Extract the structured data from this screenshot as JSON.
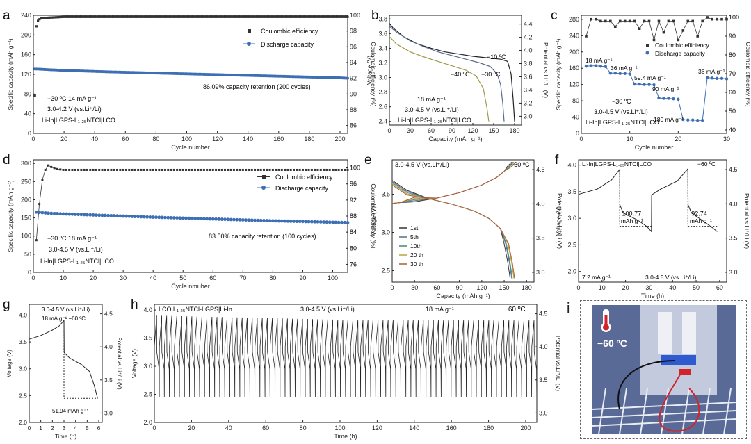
{
  "panels": [
    {
      "id": "a",
      "letter": "a",
      "xlabel": "Cycle number",
      "ylabel": "Specific capacity (mAh g⁻¹)",
      "y2label": "Coulombic efficiency (%)",
      "xlim": [
        0,
        205
      ],
      "xticks": [
        0,
        20,
        40,
        60,
        80,
        100,
        120,
        140,
        160,
        180,
        200
      ],
      "ylim": [
        0,
        240
      ],
      "yticks": [
        0,
        40,
        80,
        120,
        160,
        200,
        240
      ],
      "y2lim": [
        85,
        100
      ],
      "y2ticks": [
        86,
        88,
        90,
        92,
        94,
        96,
        98,
        100
      ],
      "legend": [
        "Coulombic efficiency",
        "Discharge capacity"
      ],
      "annotations": [
        "−30 ºC   14 mA g⁻¹",
        "3.0-4.2 V (vs.Li⁺/Li)",
        "Li-In|LGPS-L₁.₂₅NTCl|LCO"
      ],
      "retention": "86.09% capacity retention (200 cycles)"
    },
    {
      "id": "b",
      "letter": "b",
      "xlabel": "Capacity (mAh g⁻¹)",
      "ylabel": "Voltage (V)",
      "y2label": "Potential vs.Li⁺/Li (V)",
      "xlim": [
        0,
        190
      ],
      "xticks": [
        0,
        30,
        60,
        90,
        120,
        150,
        180
      ],
      "ylim": [
        2.35,
        3.85
      ],
      "yticks": [
        2.4,
        2.6,
        2.8,
        3.0,
        3.2,
        3.4,
        3.6,
        3.8
      ],
      "y2ticks": [
        "3.0",
        "3.2",
        "3.4",
        "3.6",
        "3.8",
        "4.0",
        "4.2",
        "4.4"
      ],
      "curve_labels": [
        "−10 ºC",
        "−30 ºC",
        "−40 ºC"
      ],
      "annotations": [
        "18 mA g⁻¹",
        "3.0-4.5 V (vs.Li⁺/Li)",
        "Li-In|LGPS-L₁.₂₅NTCl|LCO"
      ]
    },
    {
      "id": "c",
      "letter": "c",
      "xlabel": "Cycle number",
      "ylabel": "Specific capacity (mAh g⁻¹)",
      "y2label": "Coulombic efficiency (%)",
      "xlim": [
        0,
        30
      ],
      "xticks": [
        0,
        10,
        20,
        30
      ],
      "ylim": [
        0,
        290
      ],
      "yticks": [
        0,
        40,
        80,
        120,
        160,
        200,
        240,
        280
      ],
      "y2ticks": [
        "40",
        "50",
        "60",
        "70",
        "80",
        "90",
        "100"
      ],
      "legend": [
        "Coulombic efficiency",
        "Discharge capacity"
      ],
      "rate_labels": [
        "18 mA g⁻¹",
        "36 mA g⁻¹",
        "59.4 mA g⁻¹",
        "90 mA g⁻¹",
        "180 mA g⁻¹",
        "36 mA g⁻¹"
      ],
      "annotations": [
        "−30 ºC",
        "3.0-4.5 V (vs.Li⁺/Li)",
        "Li-In|LGPS-L₁.₂₅NTCl|LCO"
      ]
    },
    {
      "id": "d",
      "letter": "d",
      "xlabel": "Cycle nmuber",
      "ylabel": "Specific capacity (mAh g⁻¹)",
      "y2label": "Coulombic efficiency (%)",
      "xlim": [
        0,
        105
      ],
      "xticks": [
        0,
        10,
        20,
        30,
        40,
        50,
        60,
        70,
        80,
        90,
        100
      ],
      "ylim": [
        0,
        310
      ],
      "yticks": [
        0,
        50,
        100,
        150,
        200,
        250,
        300
      ],
      "y2ticks": [
        "76",
        "80",
        "84",
        "88",
        "92",
        "96",
        "100"
      ],
      "legend": [
        "Coulombic efficiency",
        "Discharge capacity"
      ],
      "annotations": [
        "−30 ºC   18 mA g⁻¹",
        "3.0-4.5 V (vs.Li⁺/Li)",
        "Li-In|LGPS-L₁.₂₅NTCl|LCO"
      ],
      "retention": "83.50% capacity retention (100 cycles)"
    },
    {
      "id": "e",
      "letter": "e",
      "xlabel": "Capacity (mAh g⁻¹)",
      "ylabel": "Voltage (V)",
      "y2label": "Potential vs.Li⁺/Li (V)",
      "xlim": [
        0,
        190
      ],
      "xticks": [
        0,
        30,
        60,
        90,
        120,
        150,
        180
      ],
      "ylim": [
        2.35,
        3.95
      ],
      "yticks": [
        2.5,
        3.0,
        3.5
      ],
      "y2ticks": [
        "3.0",
        "3.5",
        "4.0",
        "4.5"
      ],
      "legend": [
        "1st",
        "5th",
        "10th",
        "20 th",
        "30 th"
      ],
      "annotations": [
        "3.0-4.5 V (vs.Li⁺/Li)",
        "−30 ºC"
      ]
    },
    {
      "id": "f",
      "letter": "f",
      "xlabel": "Time (h)",
      "ylabel": "Voltage (V)",
      "y2label": "Potential vs.Li⁺/Li (V)",
      "xlim": [
        0,
        63
      ],
      "xticks": [
        0,
        10,
        20,
        30,
        40,
        50,
        60
      ],
      "ylim": [
        1.8,
        4.1
      ],
      "yticks": [
        2.0,
        2.5,
        3.0,
        3.5,
        4.0
      ],
      "y2ticks": [
        "3.0",
        "3.5",
        "4.0",
        "4.5"
      ],
      "annotations": [
        "Li-In|LGPS-L₁.₂₅NTCl|LCO",
        "−60 ºC",
        "7.2 mA g⁻¹",
        "3.0-4.5 V (vs.Li⁺/Li)"
      ],
      "capacities": [
        "100.77",
        "mAh g⁻¹",
        "92.74",
        "mAh g⁻¹"
      ]
    },
    {
      "id": "g",
      "letter": "g",
      "xlabel": "Time (h)",
      "ylabel": "Voltage (V)",
      "y2label": "Potential vs.Li⁺/Li (V)",
      "xlim": [
        0,
        6.3
      ],
      "xticks": [
        0,
        1,
        2,
        3,
        4,
        5,
        6
      ],
      "ylim": [
        2.0,
        4.2
      ],
      "yticks": [
        2.0,
        2.5,
        3.0,
        3.5,
        4.0
      ],
      "y2ticks": [
        "3.0",
        "3.5",
        "4.0",
        "4.5"
      ],
      "annotations": [
        "3.0-4.5 V (vs.Li⁺/Li)",
        "18 mA g⁻¹ −60 ºC",
        "51.94 mAh g⁻¹"
      ]
    },
    {
      "id": "h",
      "letter": "h",
      "xlabel": "Time (h)",
      "ylabel": "Voltage (V)",
      "y2label": "Potential vs.Li⁺/Li (V)",
      "xlim": [
        0,
        206
      ],
      "xticks": [
        0,
        20,
        40,
        60,
        80,
        100,
        120,
        140,
        160,
        180,
        200
      ],
      "ylim": [
        2.0,
        4.1
      ],
      "yticks": [
        2.0,
        2.5,
        3.0,
        3.5,
        4.0
      ],
      "y2ticks": [
        "3.0",
        "3.5",
        "4.0",
        "4.5"
      ],
      "annotations": [
        "LCO|L₁.₂₅NTCl-LGPS|Li-In",
        "3.0-4.5 V (vs.Li⁺/Li)",
        "18 mA g⁻¹",
        "−60 ºC"
      ]
    },
    {
      "id": "i",
      "letter": "i",
      "photo_label": "−60 ºC"
    }
  ],
  "chart_data": [
    {
      "type": "scatter",
      "panel": "a",
      "series": [
        {
          "name": "Coulombic efficiency",
          "x": [
            1,
            2,
            3,
            4,
            5,
            10,
            20,
            50,
            100,
            150,
            200,
            205
          ],
          "y": [
            89.8,
            98.6,
            99.3,
            99.5,
            99.6,
            99.7,
            99.8,
            99.8,
            99.8,
            99.8,
            99.8,
            99.8
          ],
          "axis": "right"
        },
        {
          "name": "Discharge capacity",
          "x": [
            1,
            20,
            50,
            100,
            150,
            200,
            205
          ],
          "y": [
            131,
            128,
            125,
            121,
            117,
            113,
            112
          ],
          "axis": "left"
        }
      ]
    },
    {
      "type": "line",
      "panel": "b",
      "series": [
        {
          "name": "−10 ºC",
          "x": [
            0,
            5,
            20,
            40,
            60,
            80,
            100,
            120,
            140,
            160,
            170,
            175,
            178,
            180
          ],
          "y": [
            3.74,
            3.68,
            3.56,
            3.46,
            3.4,
            3.35,
            3.32,
            3.29,
            3.27,
            3.25,
            3.22,
            3.05,
            2.7,
            2.4
          ]
        },
        {
          "name": "−30 ºC",
          "x": [
            0,
            10,
            30,
            50,
            70,
            90,
            110,
            130,
            145,
            155,
            160,
            163,
            165
          ],
          "y": [
            3.7,
            3.62,
            3.5,
            3.42,
            3.35,
            3.3,
            3.25,
            3.2,
            3.15,
            3.05,
            2.9,
            2.65,
            2.4
          ]
        },
        {
          "name": "−40 ºC",
          "x": [
            0,
            10,
            30,
            50,
            70,
            90,
            110,
            125,
            135,
            140,
            143
          ],
          "y": [
            3.56,
            3.46,
            3.35,
            3.28,
            3.22,
            3.16,
            3.1,
            3.02,
            2.85,
            2.6,
            2.4
          ]
        }
      ]
    },
    {
      "type": "scatter",
      "panel": "c",
      "series": [
        {
          "name": "Discharge capacity",
          "x": [
            1,
            2,
            3,
            4,
            5,
            6,
            7,
            8,
            9,
            10,
            11,
            12,
            13,
            14,
            15,
            16,
            17,
            18,
            19,
            20,
            21,
            22,
            23,
            24,
            25,
            26,
            27,
            28,
            29,
            30
          ],
          "y": [
            165,
            166,
            166,
            165,
            164,
            148,
            148,
            147,
            147,
            146,
            121,
            121,
            120,
            120,
            119,
            87,
            86,
            86,
            85,
            84,
            34,
            33,
            33,
            32,
            32,
            137,
            136,
            135,
            135,
            134
          ]
        },
        {
          "name": "Coulombic efficiency",
          "x": [
            1,
            2,
            3,
            4,
            5,
            6,
            7,
            8,
            9,
            10,
            11,
            12,
            13,
            14,
            15,
            16,
            17,
            18,
            19,
            20,
            21,
            22,
            23,
            24,
            25,
            26,
            27,
            28,
            29,
            30
          ],
          "y": [
            90,
            99,
            99,
            98,
            98,
            98,
            95,
            98,
            98,
            98,
            98,
            94,
            98,
            98,
            88,
            98,
            92,
            98,
            98,
            88,
            93,
            98,
            98,
            90,
            98,
            100,
            99,
            99,
            99,
            99
          ]
        }
      ]
    },
    {
      "type": "scatter",
      "panel": "d",
      "series": [
        {
          "name": "Coulombic efficiency",
          "x": [
            1,
            2,
            3,
            4,
            5,
            6,
            8,
            10,
            20,
            40,
            60,
            80,
            100,
            105
          ],
          "y": [
            82,
            91,
            97,
            99.5,
            100.6,
            100.2,
            99.7,
            99.5,
            99.5,
            99.5,
            99.5,
            99.5,
            99.5,
            99.5
          ]
        },
        {
          "name": "Discharge capacity",
          "x": [
            1,
            5,
            10,
            20,
            40,
            60,
            80,
            100,
            105
          ],
          "y": [
            166,
            163,
            161,
            158,
            152,
            147,
            142,
            138,
            137
          ]
        }
      ]
    },
    {
      "type": "line",
      "panel": "e",
      "series_names": [
        "1st",
        "5th",
        "10th",
        "20 th",
        "30 th"
      ],
      "discharge_end_capacity": [
        158,
        160,
        161,
        163,
        164
      ]
    },
    {
      "type": "line",
      "panel": "f",
      "x": [
        0,
        8,
        14,
        17.5,
        17.6,
        19,
        25,
        29,
        31,
        31.1,
        35,
        42,
        46.5,
        46.6,
        48,
        53,
        57,
        59
      ],
      "y": [
        3.45,
        3.55,
        3.72,
        3.92,
        3.25,
        3.1,
        2.97,
        2.85,
        2.75,
        3.44,
        3.55,
        3.7,
        3.93,
        3.25,
        3.1,
        2.95,
        2.82,
        2.75
      ]
    },
    {
      "type": "line",
      "panel": "g",
      "x": [
        0,
        1,
        2,
        2.6,
        3.0,
        3.02,
        3.5,
        4.5,
        5.2,
        5.6,
        5.9
      ],
      "y": [
        3.55,
        3.62,
        3.72,
        3.8,
        3.9,
        3.3,
        3.2,
        3.08,
        2.95,
        2.7,
        2.45
      ]
    },
    {
      "type": "line",
      "panel": "h",
      "description_cycles": 76,
      "x": [
        0,
        206
      ],
      "y_range": [
        2.45,
        3.95
      ]
    }
  ]
}
